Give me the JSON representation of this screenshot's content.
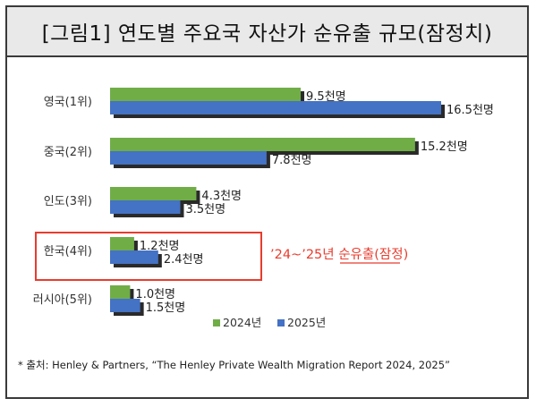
{
  "title": "[그림1] 연도별 주요국 자산가 순유출 규모(잠정치)",
  "source": "* 출처: Henley & Partners, “The Henley Private Wealth Migration Report 2024, 2025”",
  "annotation": "’24~’25년 순유출(잠정)",
  "colors": {
    "s2024": "#70ad47",
    "s2025": "#4472c4",
    "highlight": "#e83c2e",
    "bar_shadow": "#2a2a2a"
  },
  "chart_data": {
    "type": "bar",
    "orientation": "horizontal",
    "categories": [
      "영국(1위)",
      "중국(2위)",
      "인도(3위)",
      "한국(4위)",
      "러시아(5위)"
    ],
    "series": [
      {
        "name": "2024년",
        "values": [
          9.5,
          15.2,
          4.3,
          1.2,
          1.0
        ],
        "labels": [
          "9.5천명",
          "15.2천명",
          "4.3천명",
          "1.2천명",
          "1.0천명"
        ]
      },
      {
        "name": "2025년",
        "values": [
          16.5,
          7.8,
          3.5,
          2.4,
          1.5
        ],
        "labels": [
          "16.5천명",
          "7.8천명",
          "3.5천명",
          "2.4천명",
          "1.5천명"
        ]
      }
    ],
    "unit": "천명",
    "xlim": [
      0,
      16.5
    ],
    "legend": "bottom",
    "highlighted_category": "한국(4위)"
  }
}
